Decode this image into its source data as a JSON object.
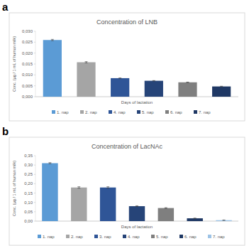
{
  "chart_data": [
    {
      "type": "bar",
      "panel_label": "a",
      "title": "Concentration of LNB",
      "xlabel": "Days of lactation",
      "ylabel": "Conc. (µg / 1 mL of human milk)",
      "categories": [
        "1. nap",
        "2. nap",
        "4. nap",
        "5. nap",
        "6. nap",
        "7. nap"
      ],
      "values": [
        0.026,
        0.0158,
        0.0085,
        0.0073,
        0.0066,
        0.0047
      ],
      "errors": [
        0.0003,
        0.0003,
        0.0001,
        0.0001,
        0.0001,
        0.0001
      ],
      "colors": [
        "#5b9bd5",
        "#a5a5a5",
        "#2f5597",
        "#264478",
        "#7f7f7f",
        "#1f3864"
      ],
      "ylim": [
        0,
        0.03
      ],
      "yticks": [
        {
          "value": 0,
          "label": "0,000"
        },
        {
          "value": 0.005,
          "label": "0,005"
        },
        {
          "value": 0.01,
          "label": "0,010"
        },
        {
          "value": 0.015,
          "label": "0,015"
        },
        {
          "value": 0.02,
          "label": "0,020"
        },
        {
          "value": 0.025,
          "label": "0,025"
        },
        {
          "value": 0.03,
          "label": "0,030"
        }
      ],
      "grid": false,
      "legend": "bottom"
    },
    {
      "type": "bar",
      "panel_label": "b",
      "title": "Concentration of LacNAc",
      "xlabel": "Days of lactation",
      "ylabel": "Conc. (µg / 1 mL of human milk)",
      "categories": [
        "1. nap",
        "2. nap",
        "3. nap",
        "4. nap",
        "5. nap",
        "6. nap",
        "7. nap"
      ],
      "values": [
        0.31,
        0.18,
        0.18,
        0.08,
        0.07,
        0.015,
        0.005
      ],
      "errors": [
        0.003,
        0.004,
        0.004,
        0.002,
        0.002,
        0.001,
        0.001
      ],
      "colors": [
        "#5b9bd5",
        "#a5a5a5",
        "#2f5597",
        "#264478",
        "#7f7f7f",
        "#1f3864",
        "#9dc3e6"
      ],
      "ylim": [
        0,
        0.35
      ],
      "yticks": [
        {
          "value": 0,
          "label": "0,00"
        },
        {
          "value": 0.05,
          "label": "0,05"
        },
        {
          "value": 0.1,
          "label": "0,10"
        },
        {
          "value": 0.15,
          "label": "0,15"
        },
        {
          "value": 0.2,
          "label": "0,20"
        },
        {
          "value": 0.25,
          "label": "0,25"
        },
        {
          "value": 0.3,
          "label": "0,30"
        },
        {
          "value": 0.35,
          "label": "0,35"
        }
      ],
      "grid": false,
      "legend": "bottom"
    }
  ]
}
